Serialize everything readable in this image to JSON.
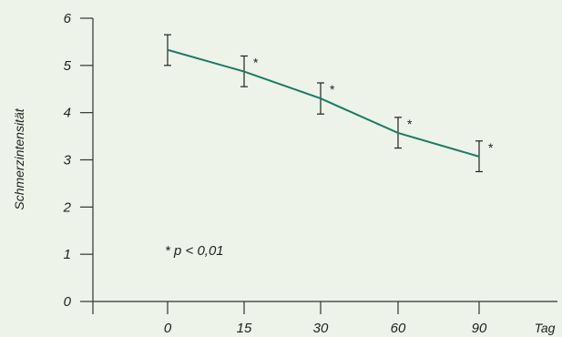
{
  "chart_data": {
    "type": "line",
    "x": [
      "0",
      "15",
      "30",
      "60",
      "90"
    ],
    "series": [
      {
        "values": [
          5.33,
          4.87,
          4.3,
          3.57,
          3.07
        ],
        "error_low": [
          5.0,
          4.55,
          3.97,
          3.25,
          2.75
        ],
        "error_high": [
          5.65,
          5.2,
          4.63,
          3.9,
          3.4
        ],
        "significance": [
          "",
          "*",
          "*",
          "*",
          "*"
        ],
        "color": "#1a7a66"
      }
    ],
    "xlabel": "Tag",
    "ylabel": "Schmerzintensität",
    "yticks": [
      "0",
      "1",
      "2",
      "3",
      "4",
      "5",
      "6"
    ],
    "ylim": [
      0,
      6
    ],
    "grid": false,
    "annotation": "* p < 0,01"
  }
}
